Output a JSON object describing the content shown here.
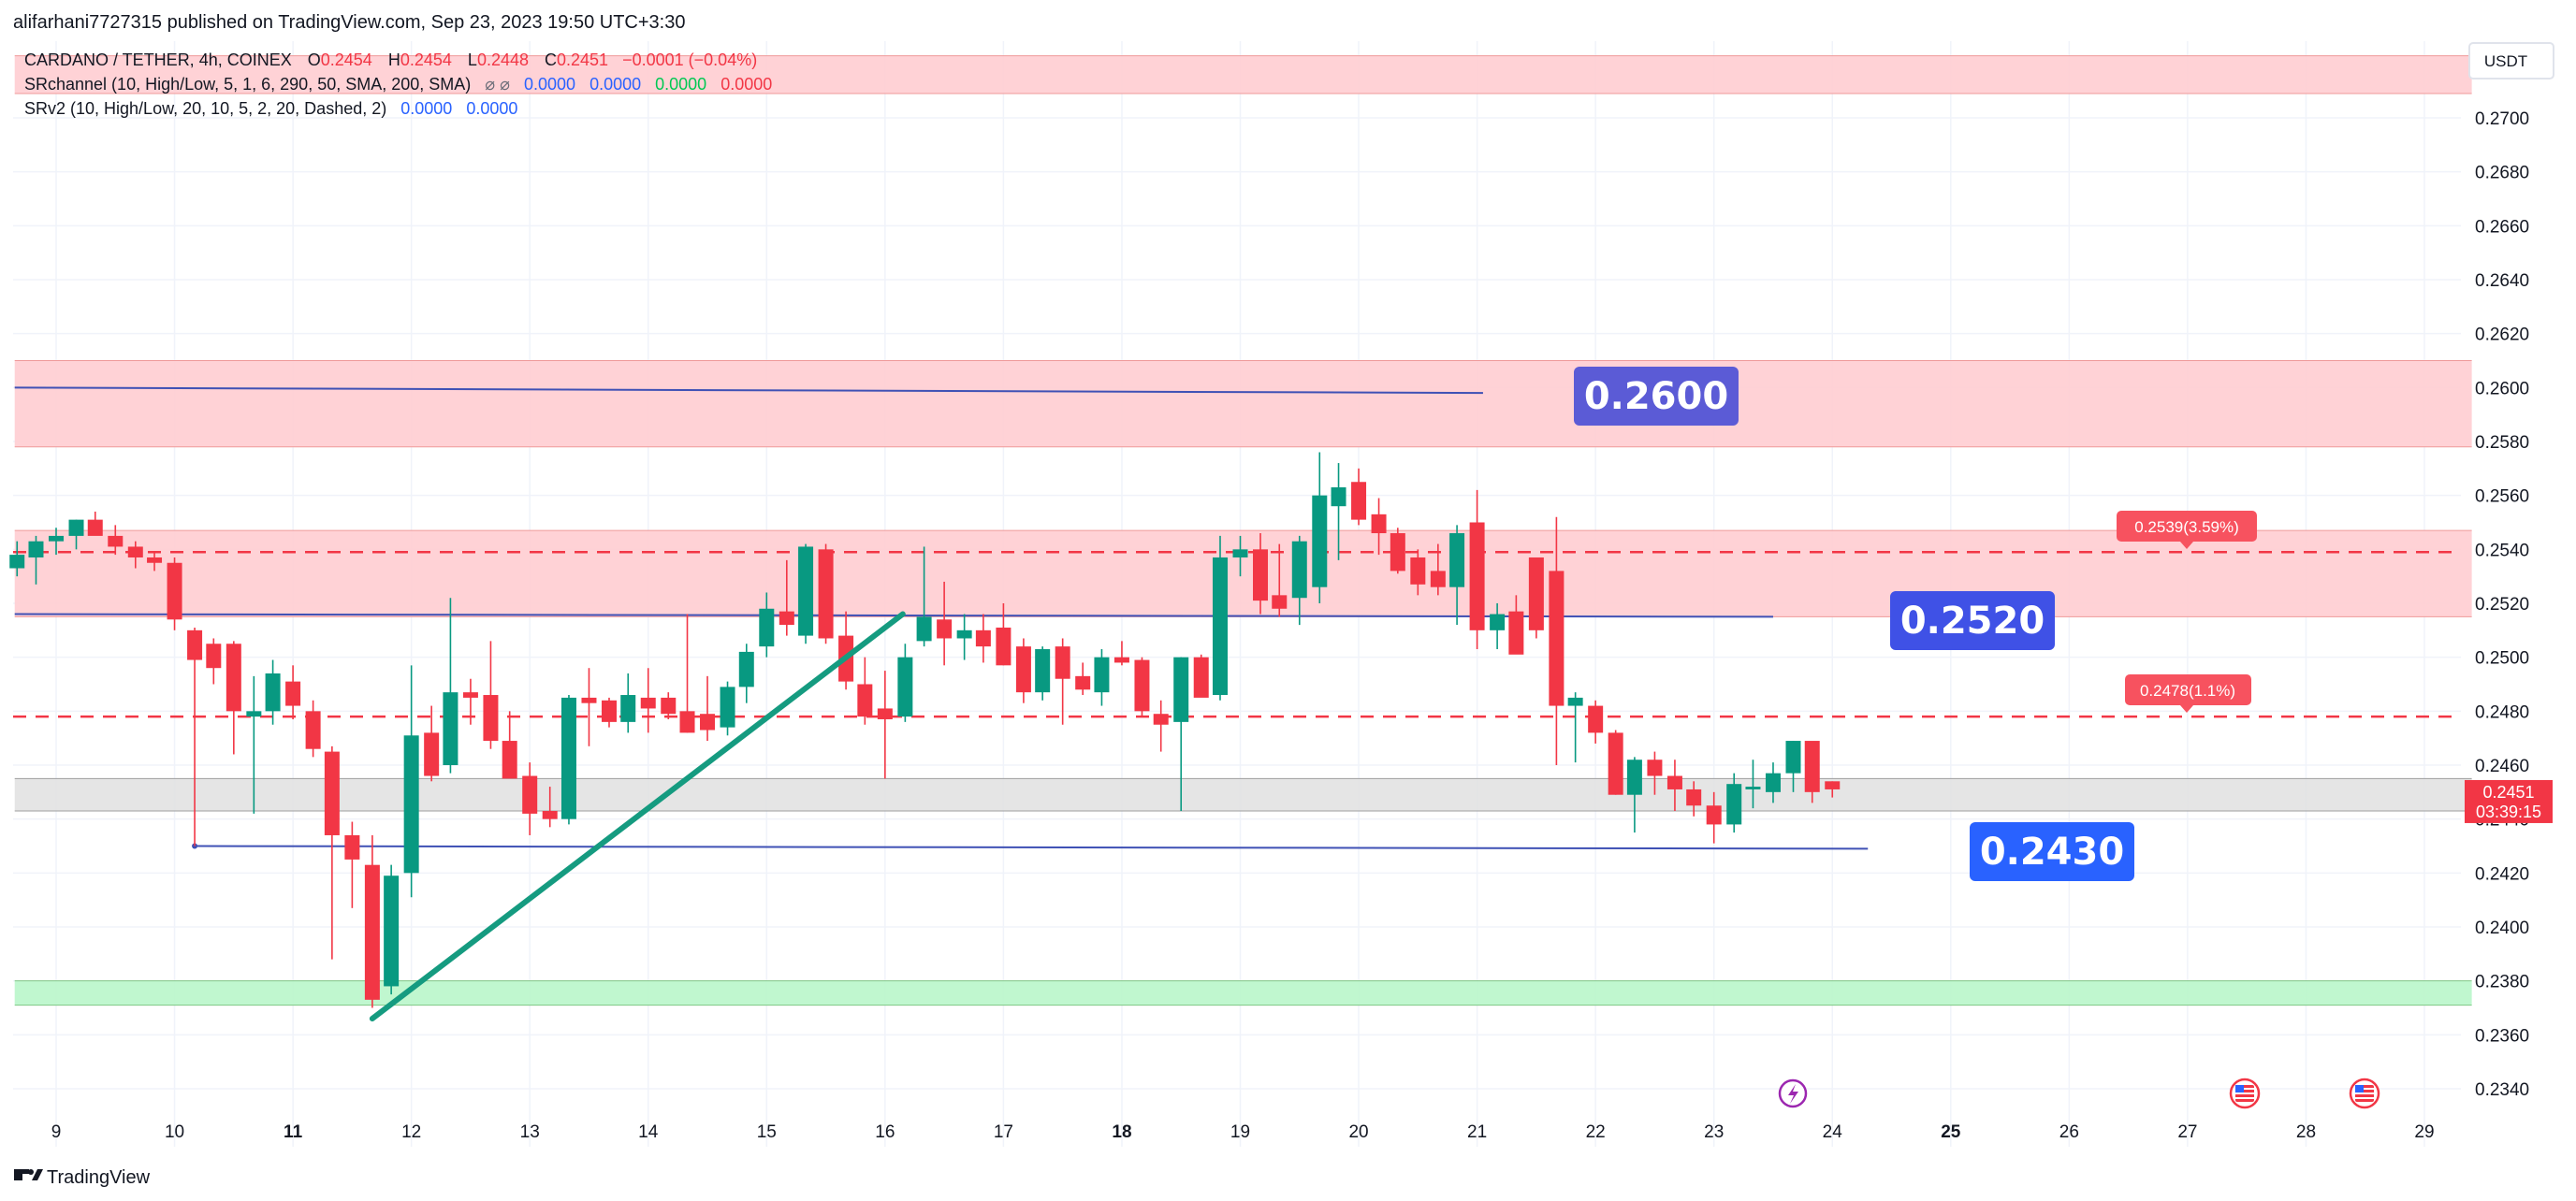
{
  "header": {
    "published": "alifarhani7727315 published on TradingView.com, Sep 23, 2023 19:50 UTC+3:30"
  },
  "legend": {
    "symbol": "CARDANO / TETHER, 4h, COINEX",
    "o_label": "O",
    "o_value": "0.2454",
    "h_label": "H",
    "h_value": "0.2454",
    "l_label": "L",
    "l_value": "0.2448",
    "c_label": "C",
    "c_value": "0.2451",
    "change": "−0.0001 (−0.04%)",
    "indicator1": "SRchannel (10, High/Low, 5, 1, 6, 290, 50, SMA, 200, SMA)",
    "indicator1_icons": "⌀ ⌀",
    "indicator1_values": [
      "0.0000",
      "0.0000",
      "0.0000",
      "0.0000"
    ],
    "indicator2": "SRv2 (10, High/Low, 20, 10, 5, 2, 20, Dashed, 2)",
    "indicator2_values": [
      "0.0000",
      "0.0000"
    ]
  },
  "price_axis": {
    "unit": "USDT",
    "current_price": "0.2451",
    "countdown": "03:39:15",
    "current_price_value": 0.2451
  },
  "annotations": {
    "level_0_2600": "0.2600",
    "level_0_2520": "0.2520",
    "level_0_2430": "0.2430",
    "target_upper": "0.2539(3.59%)",
    "target_lower": "0.2478(1.1%)"
  },
  "footer": {
    "brand": "TradingView"
  },
  "colors": {
    "up": "#089981",
    "down": "#f23645",
    "resistance_zone": "#ffcdd2",
    "support_zone": "#b9f6ca",
    "current_zone": "#e0e0e0",
    "level_line": "#3f51b5",
    "label_purple": "#5b5bd6",
    "label_blue": "#2962ff",
    "trendline": "#159b80",
    "dashed_line": "#f23645"
  },
  "chart_data": {
    "type": "candlestick",
    "title": "CARDANO / TETHER, 4h, COINEX",
    "timeframe": "4h",
    "xlabel": "",
    "ylabel": "",
    "y_ticks": [
      "0.2700",
      "0.2680",
      "0.2660",
      "0.2640",
      "0.2620",
      "0.2600",
      "0.2580",
      "0.2560",
      "0.2540",
      "0.2520",
      "0.2500",
      "0.2480",
      "0.2460",
      "0.2440",
      "0.2420",
      "0.2400",
      "0.2380",
      "0.2360",
      "0.2340"
    ],
    "ylim": [
      0.233,
      0.2715
    ],
    "x_ticks": [
      {
        "label": "9",
        "day": 9,
        "bold": false
      },
      {
        "label": "10",
        "day": 10,
        "bold": false
      },
      {
        "label": "11",
        "day": 11,
        "bold": true
      },
      {
        "label": "12",
        "day": 12,
        "bold": false
      },
      {
        "label": "13",
        "day": 13,
        "bold": false
      },
      {
        "label": "14",
        "day": 14,
        "bold": false
      },
      {
        "label": "15",
        "day": 15,
        "bold": false
      },
      {
        "label": "16",
        "day": 16,
        "bold": false
      },
      {
        "label": "17",
        "day": 17,
        "bold": false
      },
      {
        "label": "18",
        "day": 18,
        "bold": true
      },
      {
        "label": "19",
        "day": 19,
        "bold": false
      },
      {
        "label": "20",
        "day": 20,
        "bold": false
      },
      {
        "label": "21",
        "day": 21,
        "bold": false
      },
      {
        "label": "22",
        "day": 22,
        "bold": false
      },
      {
        "label": "23",
        "day": 23,
        "bold": false
      },
      {
        "label": "24",
        "day": 24,
        "bold": false
      },
      {
        "label": "25",
        "day": 25,
        "bold": true
      },
      {
        "label": "26",
        "day": 26,
        "bold": false
      },
      {
        "label": "27",
        "day": 27,
        "bold": false
      },
      {
        "label": "28",
        "day": 28,
        "bold": false
      },
      {
        "label": "29",
        "day": 29,
        "bold": false
      }
    ],
    "xlim_days": [
      8.65,
      29.4
    ],
    "candles": [
      [
        8.67,
        0.2533,
        0.2543,
        0.253,
        0.2538
      ],
      [
        8.83,
        0.2537,
        0.2545,
        0.2527,
        0.2543
      ],
      [
        9.0,
        0.2543,
        0.2548,
        0.2538,
        0.2545
      ],
      [
        9.17,
        0.2545,
        0.2551,
        0.254,
        0.2551
      ],
      [
        9.33,
        0.2551,
        0.2554,
        0.2546,
        0.2545
      ],
      [
        9.5,
        0.2545,
        0.2549,
        0.2538,
        0.2541
      ],
      [
        9.67,
        0.2541,
        0.2543,
        0.2533,
        0.2537
      ],
      [
        9.83,
        0.2537,
        0.2539,
        0.2532,
        0.2535
      ],
      [
        10.0,
        0.2535,
        0.2537,
        0.251,
        0.2514
      ],
      [
        10.17,
        0.251,
        0.2511,
        0.243,
        0.2499
      ],
      [
        10.33,
        0.2505,
        0.2507,
        0.249,
        0.2496
      ],
      [
        10.5,
        0.2505,
        0.2506,
        0.2464,
        0.248
      ],
      [
        10.67,
        0.2478,
        0.2493,
        0.2442,
        0.248
      ],
      [
        10.83,
        0.248,
        0.2499,
        0.2475,
        0.2494
      ],
      [
        11.0,
        0.2491,
        0.2497,
        0.2477,
        0.2482
      ],
      [
        11.17,
        0.248,
        0.2484,
        0.2463,
        0.2466
      ],
      [
        11.33,
        0.2465,
        0.2467,
        0.2388,
        0.2434
      ],
      [
        11.5,
        0.2434,
        0.2439,
        0.2407,
        0.2425
      ],
      [
        11.67,
        0.2423,
        0.2434,
        0.237,
        0.2373
      ],
      [
        11.83,
        0.2378,
        0.2423,
        0.2375,
        0.2419
      ],
      [
        12.0,
        0.242,
        0.2497,
        0.2411,
        0.2471
      ],
      [
        12.17,
        0.2472,
        0.2482,
        0.2454,
        0.2456
      ],
      [
        12.33,
        0.246,
        0.2522,
        0.2457,
        0.2487
      ],
      [
        12.5,
        0.2487,
        0.2492,
        0.2475,
        0.2485
      ],
      [
        12.67,
        0.2486,
        0.2506,
        0.2466,
        0.2469
      ],
      [
        12.83,
        0.2469,
        0.248,
        0.2458,
        0.2455
      ],
      [
        13.0,
        0.2456,
        0.2461,
        0.2434,
        0.2442
      ],
      [
        13.17,
        0.2443,
        0.2452,
        0.2437,
        0.244
      ],
      [
        13.33,
        0.244,
        0.2486,
        0.2438,
        0.2485
      ],
      [
        13.5,
        0.2485,
        0.2496,
        0.2467,
        0.2483
      ],
      [
        13.67,
        0.2484,
        0.2485,
        0.2474,
        0.2476
      ],
      [
        13.83,
        0.2476,
        0.2494,
        0.2472,
        0.2486
      ],
      [
        14.0,
        0.2485,
        0.2496,
        0.2472,
        0.2481
      ],
      [
        14.17,
        0.2485,
        0.2487,
        0.2477,
        0.2479
      ],
      [
        14.33,
        0.248,
        0.2516,
        0.2472,
        0.2472
      ],
      [
        14.5,
        0.2479,
        0.2493,
        0.2469,
        0.2473
      ],
      [
        14.67,
        0.2474,
        0.2491,
        0.2471,
        0.2489
      ],
      [
        14.83,
        0.2489,
        0.2505,
        0.2483,
        0.2502
      ],
      [
        15.0,
        0.2504,
        0.2524,
        0.25,
        0.2518
      ],
      [
        15.17,
        0.2517,
        0.2536,
        0.2508,
        0.2512
      ],
      [
        15.33,
        0.2508,
        0.2542,
        0.2505,
        0.2541
      ],
      [
        15.5,
        0.254,
        0.2542,
        0.2505,
        0.2507
      ],
      [
        15.67,
        0.2508,
        0.2517,
        0.2488,
        0.2491
      ],
      [
        15.83,
        0.249,
        0.25,
        0.2475,
        0.2478
      ],
      [
        16.0,
        0.2481,
        0.2495,
        0.2455,
        0.2477
      ],
      [
        16.17,
        0.2478,
        0.2505,
        0.2476,
        0.25
      ],
      [
        16.33,
        0.2506,
        0.2541,
        0.2504,
        0.2515
      ],
      [
        16.5,
        0.2514,
        0.2528,
        0.2497,
        0.2507
      ],
      [
        16.67,
        0.2507,
        0.2516,
        0.2499,
        0.251
      ],
      [
        16.83,
        0.251,
        0.2516,
        0.2498,
        0.2504
      ],
      [
        17.0,
        0.2511,
        0.252,
        0.2497,
        0.2497
      ],
      [
        17.17,
        0.2504,
        0.2507,
        0.2483,
        0.2487
      ],
      [
        17.33,
        0.2487,
        0.2504,
        0.2484,
        0.2503
      ],
      [
        17.5,
        0.2504,
        0.2507,
        0.2475,
        0.2492
      ],
      [
        17.67,
        0.2493,
        0.2498,
        0.2486,
        0.2488
      ],
      [
        17.83,
        0.2487,
        0.2503,
        0.2482,
        0.25
      ],
      [
        18.0,
        0.25,
        0.2506,
        0.2497,
        0.2498
      ],
      [
        18.17,
        0.2499,
        0.25,
        0.2478,
        0.248
      ],
      [
        18.33,
        0.2479,
        0.2484,
        0.2465,
        0.2475
      ],
      [
        18.5,
        0.2476,
        0.25,
        0.2443,
        0.25
      ],
      [
        18.67,
        0.25,
        0.2501,
        0.2486,
        0.2485
      ],
      [
        18.83,
        0.2486,
        0.2545,
        0.2484,
        0.2537
      ],
      [
        19.0,
        0.2537,
        0.2545,
        0.253,
        0.254
      ],
      [
        19.17,
        0.254,
        0.2546,
        0.2516,
        0.2521
      ],
      [
        19.33,
        0.2523,
        0.2542,
        0.2515,
        0.2518
      ],
      [
        19.5,
        0.2522,
        0.2545,
        0.2512,
        0.2543
      ],
      [
        19.67,
        0.2526,
        0.2576,
        0.252,
        0.256
      ],
      [
        19.83,
        0.2556,
        0.2572,
        0.2536,
        0.2563
      ],
      [
        20.0,
        0.2565,
        0.257,
        0.2549,
        0.2551
      ],
      [
        20.17,
        0.2553,
        0.2559,
        0.2538,
        0.2546
      ],
      [
        20.33,
        0.2546,
        0.2548,
        0.2531,
        0.2532
      ],
      [
        20.5,
        0.2537,
        0.254,
        0.2523,
        0.2527
      ],
      [
        20.67,
        0.2532,
        0.2542,
        0.2523,
        0.2526
      ],
      [
        20.83,
        0.2526,
        0.2549,
        0.2512,
        0.2546
      ],
      [
        21.0,
        0.255,
        0.2562,
        0.2503,
        0.251
      ],
      [
        21.17,
        0.251,
        0.252,
        0.2503,
        0.2516
      ],
      [
        21.33,
        0.2517,
        0.2523,
        0.2504,
        0.2501
      ],
      [
        21.5,
        0.2537,
        0.2534,
        0.2507,
        0.251
      ],
      [
        21.67,
        0.2532,
        0.2552,
        0.246,
        0.2482
      ],
      [
        21.83,
        0.2482,
        0.2487,
        0.2461,
        0.2485
      ],
      [
        22.0,
        0.2482,
        0.2484,
        0.2468,
        0.2472
      ],
      [
        22.17,
        0.2472,
        0.2473,
        0.2449,
        0.2449
      ],
      [
        22.33,
        0.2449,
        0.2463,
        0.2435,
        0.2462
      ],
      [
        22.5,
        0.2462,
        0.2465,
        0.2449,
        0.2456
      ],
      [
        22.67,
        0.2456,
        0.2462,
        0.2443,
        0.2451
      ],
      [
        22.83,
        0.2451,
        0.2454,
        0.2441,
        0.2445
      ],
      [
        23.0,
        0.2445,
        0.245,
        0.2431,
        0.2438
      ],
      [
        23.17,
        0.2438,
        0.2457,
        0.2435,
        0.2453
      ],
      [
        23.33,
        0.2451,
        0.2462,
        0.2444,
        0.2452
      ],
      [
        23.5,
        0.245,
        0.2461,
        0.2446,
        0.2457
      ],
      [
        23.67,
        0.2457,
        0.2469,
        0.245,
        0.2469
      ],
      [
        23.83,
        0.2469,
        0.2467,
        0.2446,
        0.245
      ],
      [
        24.0,
        0.2454,
        0.2454,
        0.2448,
        0.2451
      ]
    ],
    "zones": [
      {
        "name": "resistance-zone-top",
        "from": 0.2578,
        "to": 0.261,
        "x_start": 8.65,
        "x_end": 29.4
      },
      {
        "name": "resistance-zone-mid",
        "from": 0.2515,
        "to": 0.2547,
        "x_start": 8.65,
        "x_end": 29.4
      },
      {
        "name": "current-zone",
        "from": 0.2443,
        "to": 0.2455,
        "x_start": 8.65,
        "x_end": 29.4
      },
      {
        "name": "support-zone",
        "from": 0.2371,
        "to": 0.238,
        "x_start": 8.65,
        "x_end": 29.4
      },
      {
        "name": "legend-zone",
        "from": 0.2709,
        "to": 0.2723,
        "x_start": 8.65,
        "x_end": 29.4
      }
    ],
    "level_lines": [
      {
        "name": "level-0-2600",
        "value": 0.26,
        "x_start": 8.65,
        "x_end": 21.05,
        "end_value": 0.2598
      },
      {
        "name": "level-0-2520",
        "value": 0.2516,
        "x_start": 8.65,
        "x_end": 23.5,
        "end_value": 0.2515
      },
      {
        "name": "level-0-2430",
        "value": 0.243,
        "x_start": 10.17,
        "x_end": 24.3,
        "end_value": 0.2429
      }
    ],
    "dashed_lines": [
      {
        "name": "target-upper-line",
        "value": 0.2539
      },
      {
        "name": "target-lower-line",
        "value": 0.2478
      }
    ],
    "trendline": {
      "x1": 11.67,
      "y1": 0.2366,
      "x2": 16.15,
      "y2": 0.2516
    },
    "last_price": 0.2451
  }
}
